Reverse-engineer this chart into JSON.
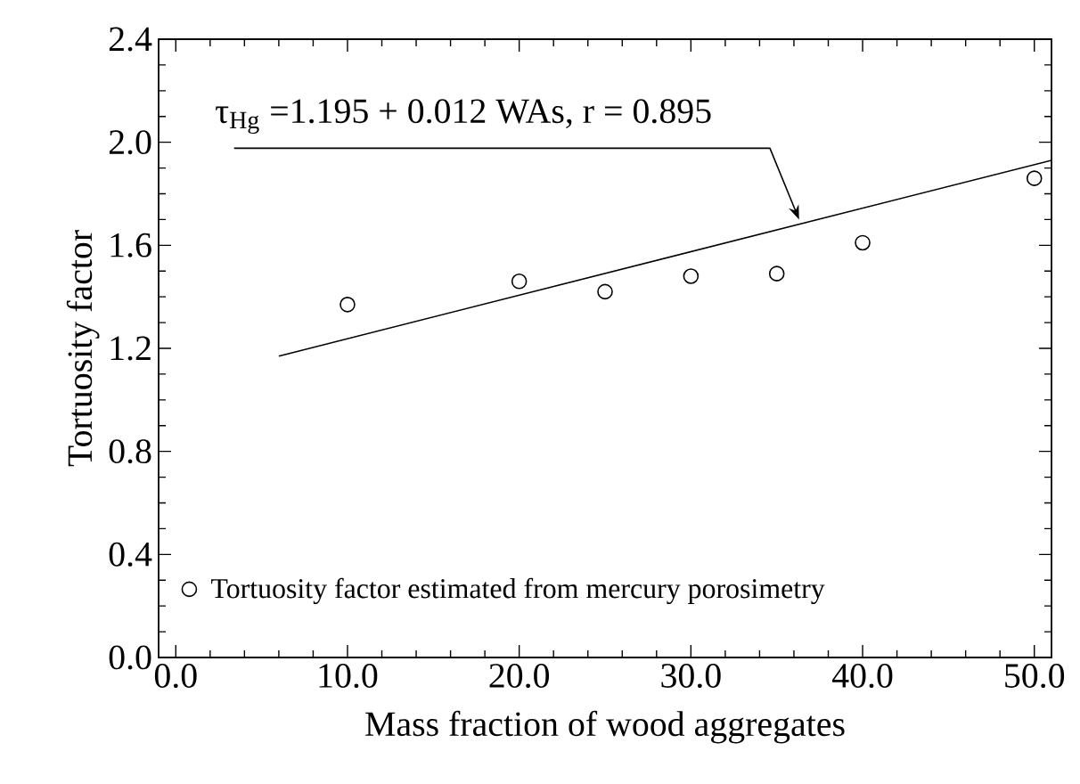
{
  "chart_data": {
    "type": "scatter",
    "xlabel": "Mass fraction of wood aggregates",
    "ylabel": "Tortuosity factor",
    "series": [
      {
        "name": "Tortuosity factor estimated from mercury porosimetry",
        "type": "scatter",
        "color": "#000000",
        "x": [
          10,
          20,
          25,
          30,
          35,
          40,
          50
        ],
        "values": [
          1.37,
          1.46,
          1.42,
          1.48,
          1.49,
          1.61,
          1.86
        ]
      },
      {
        "type": "line",
        "color": "#000000",
        "marker": "none",
        "x": [
          6,
          51
        ],
        "values": [
          1.17,
          1.93
        ]
      }
    ],
    "annotations": [
      {
        "text": "τ$_{Hg}$ =1.195 + 0.012 WAs, r = 0.895",
        "x": 36.3,
        "y": 1.7
      }
    ],
    "xlim": [
      -1,
      51
    ],
    "ylim": [
      0,
      2.4
    ],
    "xticks": [
      {
        "value": 0,
        "label": "0.0"
      },
      {
        "value": 10,
        "label": "10.0"
      },
      {
        "value": 20,
        "label": "20.0"
      },
      {
        "value": 30,
        "label": "30.0"
      },
      {
        "value": 40,
        "label": "40.0"
      },
      {
        "value": 50,
        "label": "50.0"
      }
    ],
    "yticks": [
      {
        "value": 0,
        "label": "0.0"
      },
      {
        "value": 0.4,
        "label": "0.4"
      },
      {
        "value": 0.8,
        "label": "0.8"
      },
      {
        "value": 1.2,
        "label": "1.2"
      },
      {
        "value": 1.6,
        "label": "1.6"
      },
      {
        "value": 2.0,
        "label": "2.0"
      },
      {
        "value": 2.4,
        "label": "2.4"
      }
    ],
    "grid": false,
    "legend": "bottom left",
    "marker": "circle"
  }
}
